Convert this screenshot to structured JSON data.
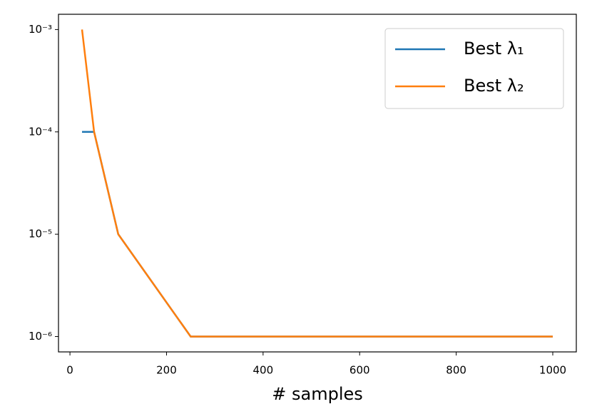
{
  "chart_data": {
    "type": "line",
    "x_label": "# samples",
    "x": [
      25,
      50,
      100,
      250,
      500,
      1000
    ],
    "series": [
      {
        "name": "Best λ₁",
        "color": "#1f77b4",
        "values": [
          0.0001,
          0.0001,
          1e-05,
          1e-06,
          1e-06,
          1e-06
        ]
      },
      {
        "name": "Best λ₂",
        "color": "#ff7f0e",
        "values": [
          0.001,
          0.0001,
          1e-05,
          1e-06,
          1e-06,
          1e-06
        ]
      }
    ],
    "xlim": [
      -23.75,
      1048.75
    ],
    "xticks": [
      0,
      200,
      400,
      600,
      800,
      1000
    ],
    "ylim": [
      7.08e-07,
      0.00141
    ],
    "yscale": "log",
    "yticks": [
      {
        "value": 1e-06,
        "label": "10⁻⁶"
      },
      {
        "value": 1e-05,
        "label": "10⁻⁵"
      },
      {
        "value": 0.0001,
        "label": "10⁻⁴"
      },
      {
        "value": 0.001,
        "label": "10⁻³"
      }
    ],
    "legend": "upper right"
  }
}
